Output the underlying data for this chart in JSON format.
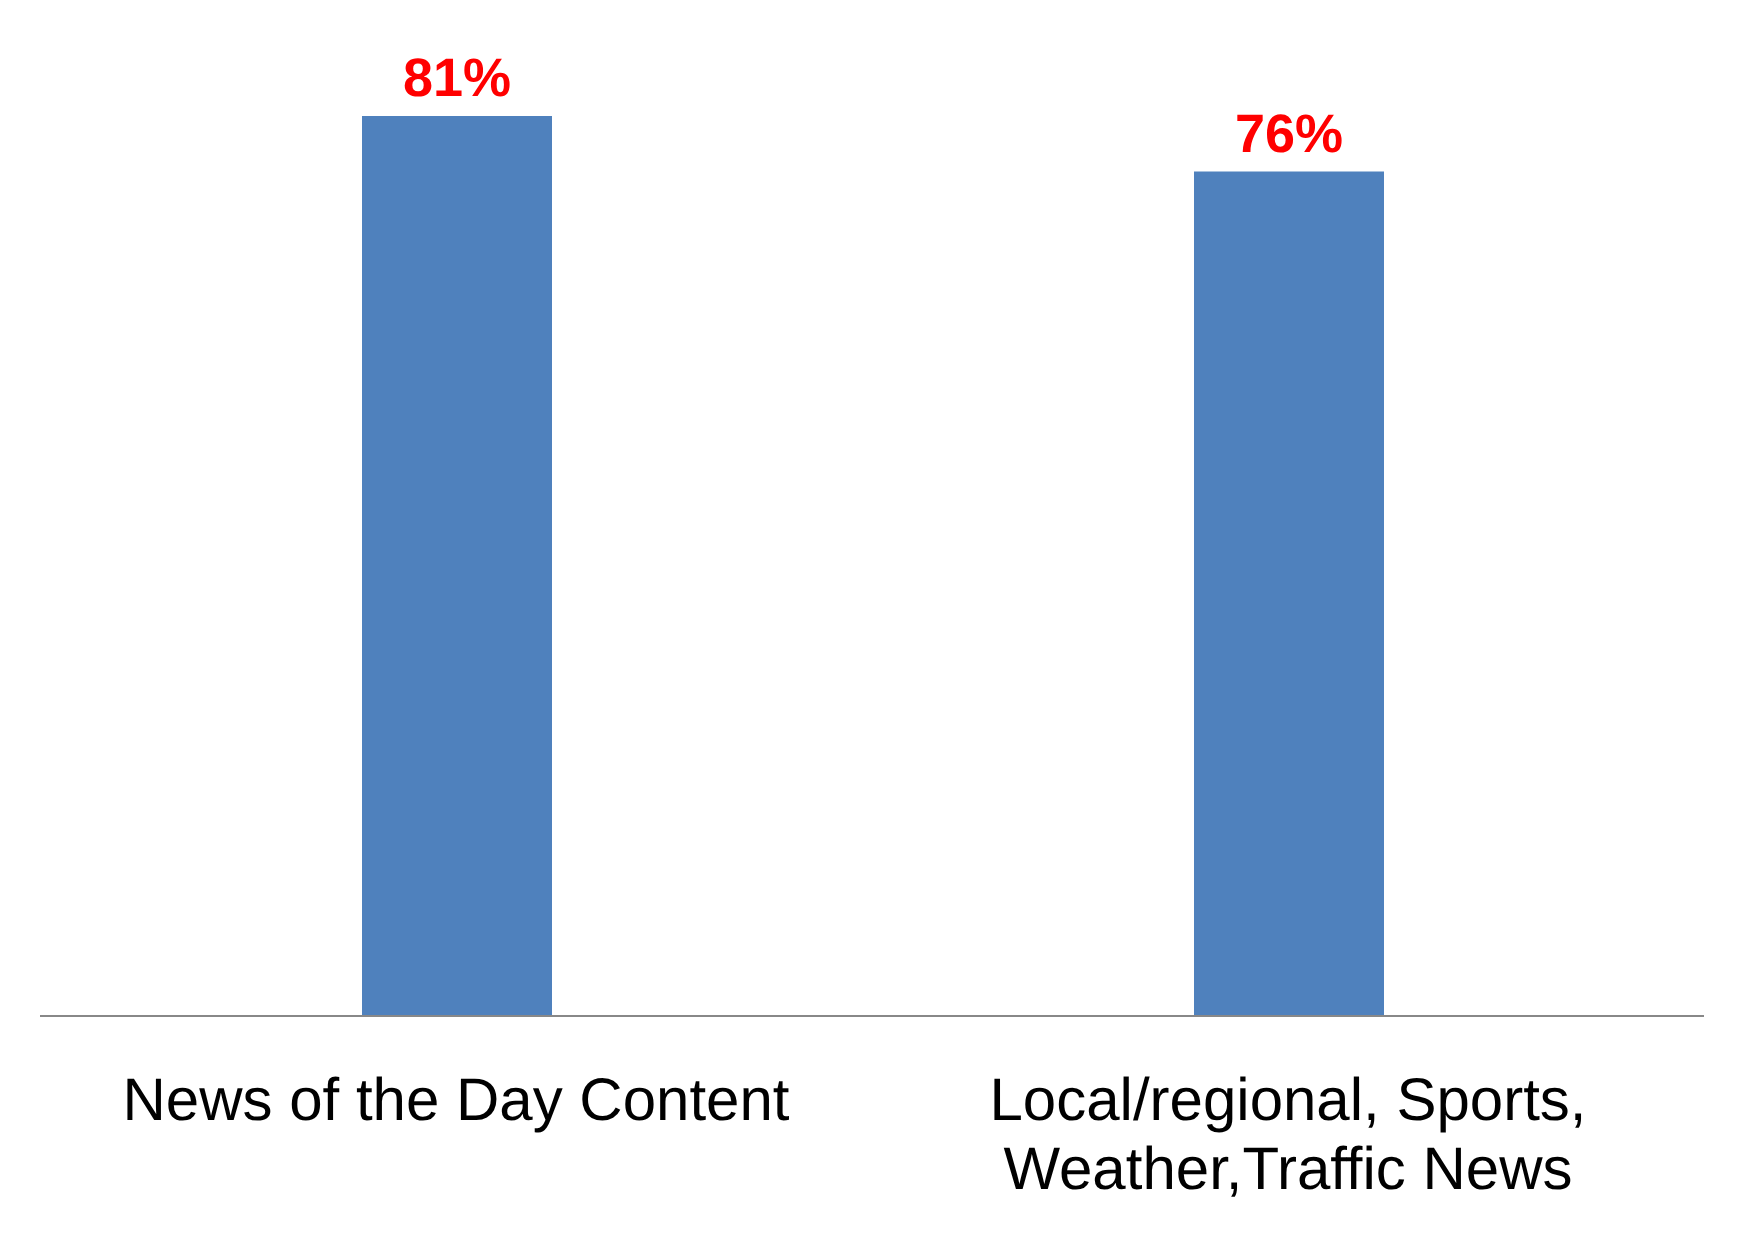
{
  "chart_data": {
    "type": "bar",
    "categories": [
      "News of the Day Content",
      "Local/regional, Sports, Weather,Traffic News"
    ],
    "values": [
      81,
      76
    ],
    "value_labels": [
      "81%",
      "76%"
    ],
    "color": "#4f81bd",
    "grid": false,
    "legend": false
  }
}
